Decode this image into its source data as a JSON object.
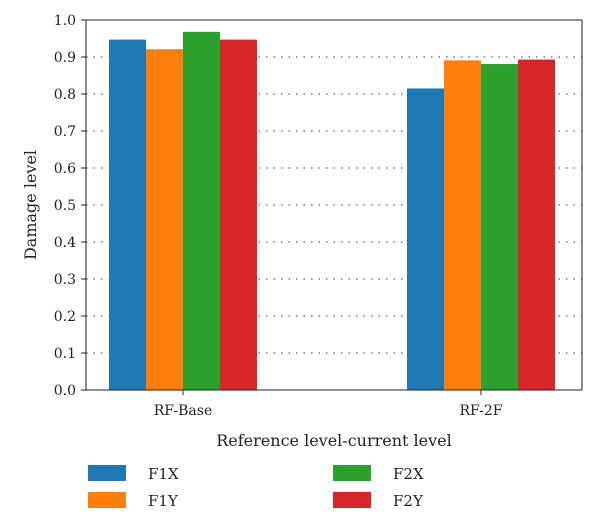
{
  "chart_data": {
    "type": "bar",
    "title": "",
    "xlabel": "Reference level-current level",
    "ylabel": "Damage level",
    "ylim": [
      0,
      1.0
    ],
    "yticks": [
      "0.0",
      "0.1",
      "0.2",
      "0.3",
      "0.4",
      "0.5",
      "0.6",
      "0.7",
      "0.8",
      "0.9",
      "1.0"
    ],
    "grid": "horizontal dotted",
    "legend_position": "bottom",
    "categories": [
      "RF-Base",
      "RF-2F"
    ],
    "series": [
      {
        "name": "F1X",
        "color": "#1f77b4",
        "values": [
          0.947,
          0.815
        ]
      },
      {
        "name": "F1Y",
        "color": "#ff7f0e",
        "values": [
          0.921,
          0.891
        ]
      },
      {
        "name": "F2X",
        "color": "#2ca02c",
        "values": [
          0.968,
          0.881
        ]
      },
      {
        "name": "F2Y",
        "color": "#d62728",
        "values": [
          0.947,
          0.893
        ]
      }
    ]
  }
}
